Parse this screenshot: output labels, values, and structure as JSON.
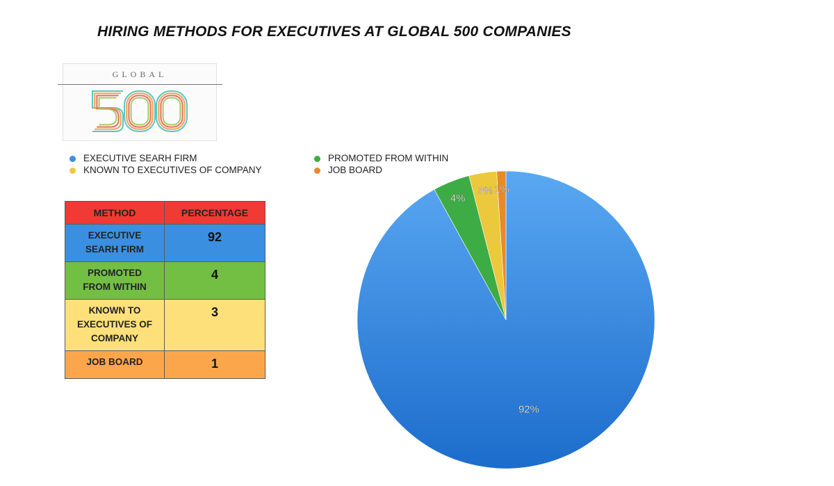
{
  "chart_data": {
    "type": "pie",
    "title": "HIRING METHODS FOR EXECUTIVES AT GLOBAL 500 COMPANIES",
    "categories": [
      "EXECUTIVE SEARH FIRM",
      "PROMOTED FROM WITHIN",
      "KNOWN TO EXECUTIVES OF COMPANY",
      "JOB BOARD"
    ],
    "values": [
      92,
      4,
      3,
      1
    ],
    "slice_labels": [
      "92%",
      "4%",
      "3%",
      "1%"
    ],
    "colors": [
      "#3d8ee0",
      "#3eac45",
      "#ecc83c",
      "#e98a2a"
    ],
    "legend_position": "top-left"
  },
  "logo": {
    "word": "GLOBAL",
    "number": "500"
  },
  "table": {
    "headers": [
      "METHOD",
      "PERCENTAGE"
    ],
    "header_color": "#f03a33",
    "rows": [
      {
        "method": "EXECUTIVE SEARH FIRM",
        "value": "92",
        "color": "#3b8fe0"
      },
      {
        "method": "PROMOTED FROM WITHIN",
        "value": "4",
        "color": "#72bf44"
      },
      {
        "method": "KNOWN TO EXECUTIVES OF COMPANY",
        "value": "3",
        "color": "#fde07a"
      },
      {
        "method": "JOB BOARD",
        "value": "1",
        "color": "#fca64c"
      }
    ]
  }
}
